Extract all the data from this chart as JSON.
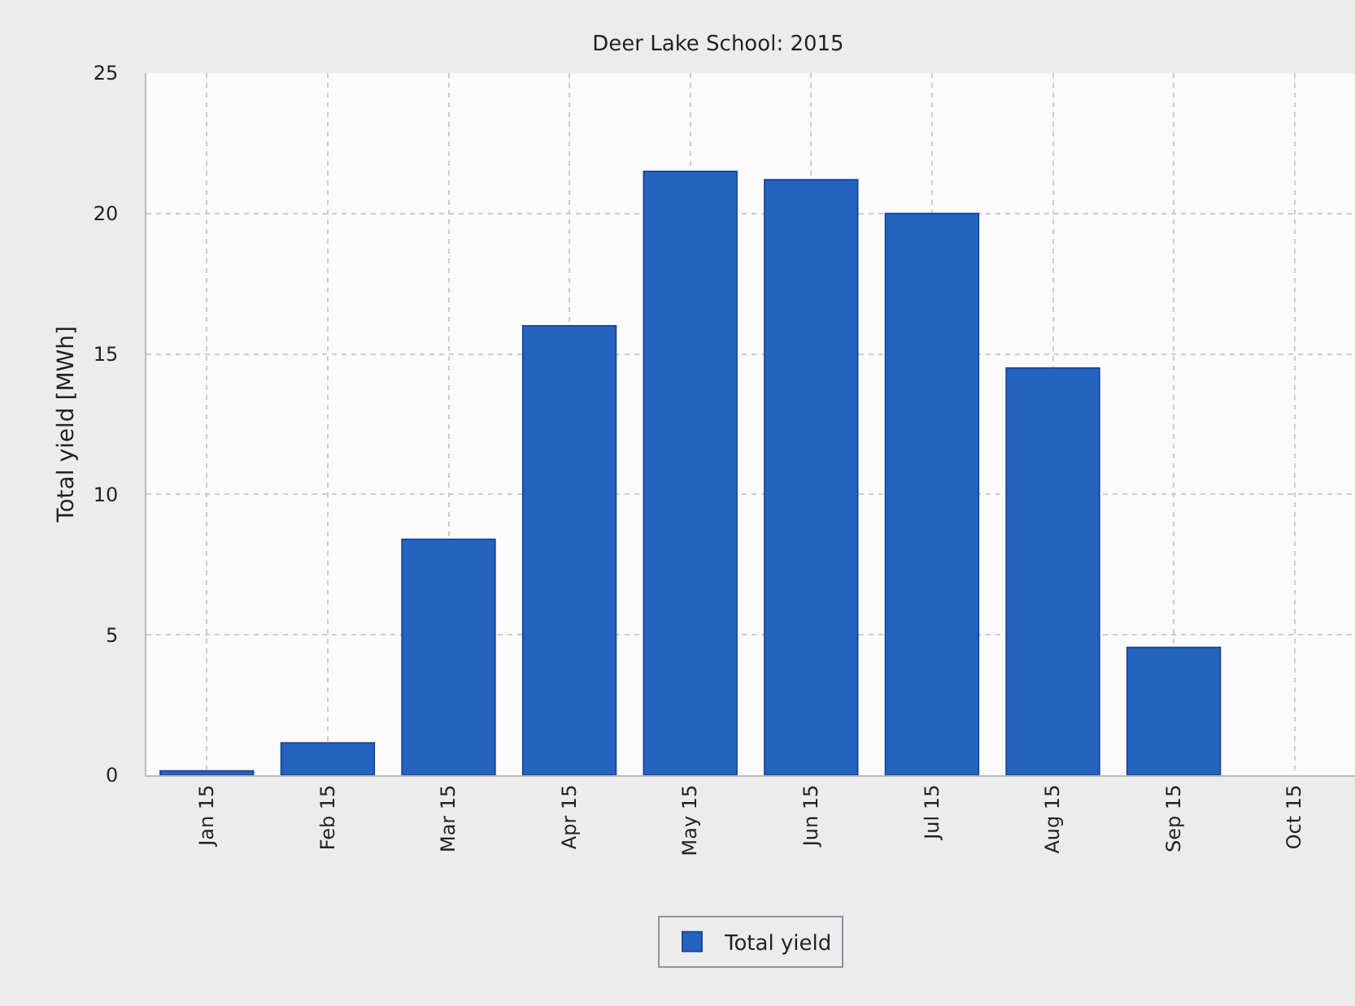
{
  "chart_data": {
    "type": "bar",
    "title": "Deer Lake School: 2015",
    "ylabel": "Total yield [MWh]",
    "categories": [
      "Jan 15",
      "Feb 15",
      "Mar 15",
      "Apr 15",
      "May 15",
      "Jun 15",
      "Jul 15",
      "Aug 15",
      "Sep 15",
      "Oct 15"
    ],
    "series": [
      {
        "name": "Total yield",
        "color": "#2563c0",
        "values": [
          0.15,
          1.15,
          8.4,
          16.0,
          21.5,
          21.2,
          20.0,
          14.5,
          4.55,
          null
        ]
      }
    ],
    "ylim": [
      0,
      25
    ],
    "yticks": [
      0,
      5,
      10,
      15,
      20,
      25
    ],
    "grid": true,
    "legend": "bottom"
  }
}
